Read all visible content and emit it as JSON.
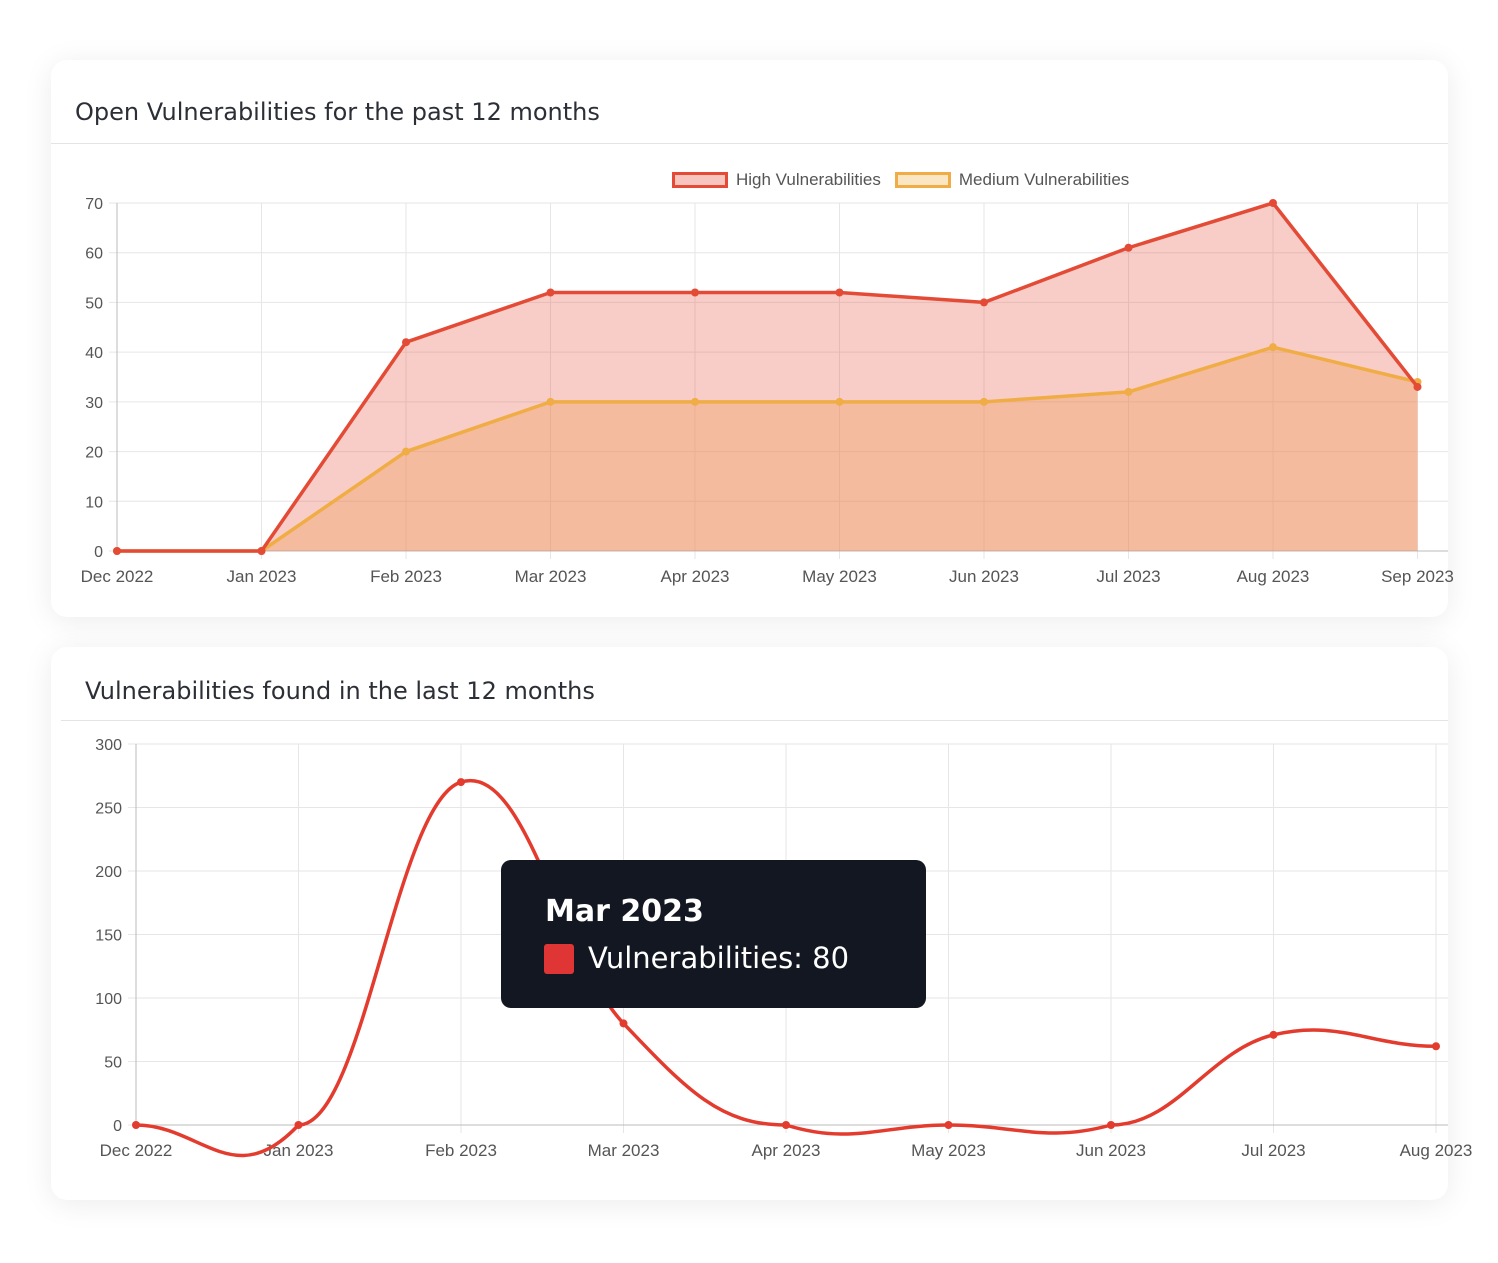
{
  "chart_data": [
    {
      "type": "area",
      "title": "Open Vulnerabilities for the past 12 months",
      "categories": [
        "Dec 2022",
        "Jan 2023",
        "Feb 2023",
        "Mar 2023",
        "Apr 2023",
        "May 2023",
        "Jun 2023",
        "Jul 2023",
        "Aug 2023",
        "Sep 2023"
      ],
      "series": [
        {
          "name": "High Vulnerabilities",
          "values": [
            0,
            0,
            42,
            52,
            52,
            52,
            50,
            61,
            70,
            33
          ],
          "color": "#e34b36",
          "fill": "rgba(231,90,70,0.30)"
        },
        {
          "name": "Medium Vulnerabilities",
          "values": [
            0,
            0,
            20,
            30,
            30,
            30,
            30,
            32,
            41,
            34
          ],
          "color": "#f0ad45",
          "fill": "rgba(240,160,100,0.40)"
        }
      ],
      "ylim": [
        0,
        70
      ],
      "yticks": [
        0,
        10,
        20,
        30,
        40,
        50,
        60,
        70
      ],
      "legend": "top",
      "grid": true
    },
    {
      "type": "line",
      "title": "Vulnerabilities found in the last 12 months",
      "categories": [
        "Dec 2022",
        "Jan 2023",
        "Feb 2023",
        "Mar 2023",
        "Apr 2023",
        "May 2023",
        "Jun 2023",
        "Jul 2023",
        "Aug 2023"
      ],
      "series": [
        {
          "name": "Vulnerabilities",
          "values": [
            0,
            0,
            270,
            80,
            0,
            0,
            0,
            71,
            62
          ],
          "color": "#e33b2e"
        }
      ],
      "ylim": [
        0,
        300
      ],
      "yticks": [
        0,
        50,
        100,
        150,
        200,
        250,
        300
      ],
      "grid": true,
      "tooltip": {
        "title": "Mar 2023",
        "label": "Vulnerabilities: 80"
      }
    }
  ],
  "colors": {
    "high": "#e34b36",
    "medium": "#f0ad45",
    "line": "#e33b2e",
    "tooltip_bg": "#121721"
  }
}
